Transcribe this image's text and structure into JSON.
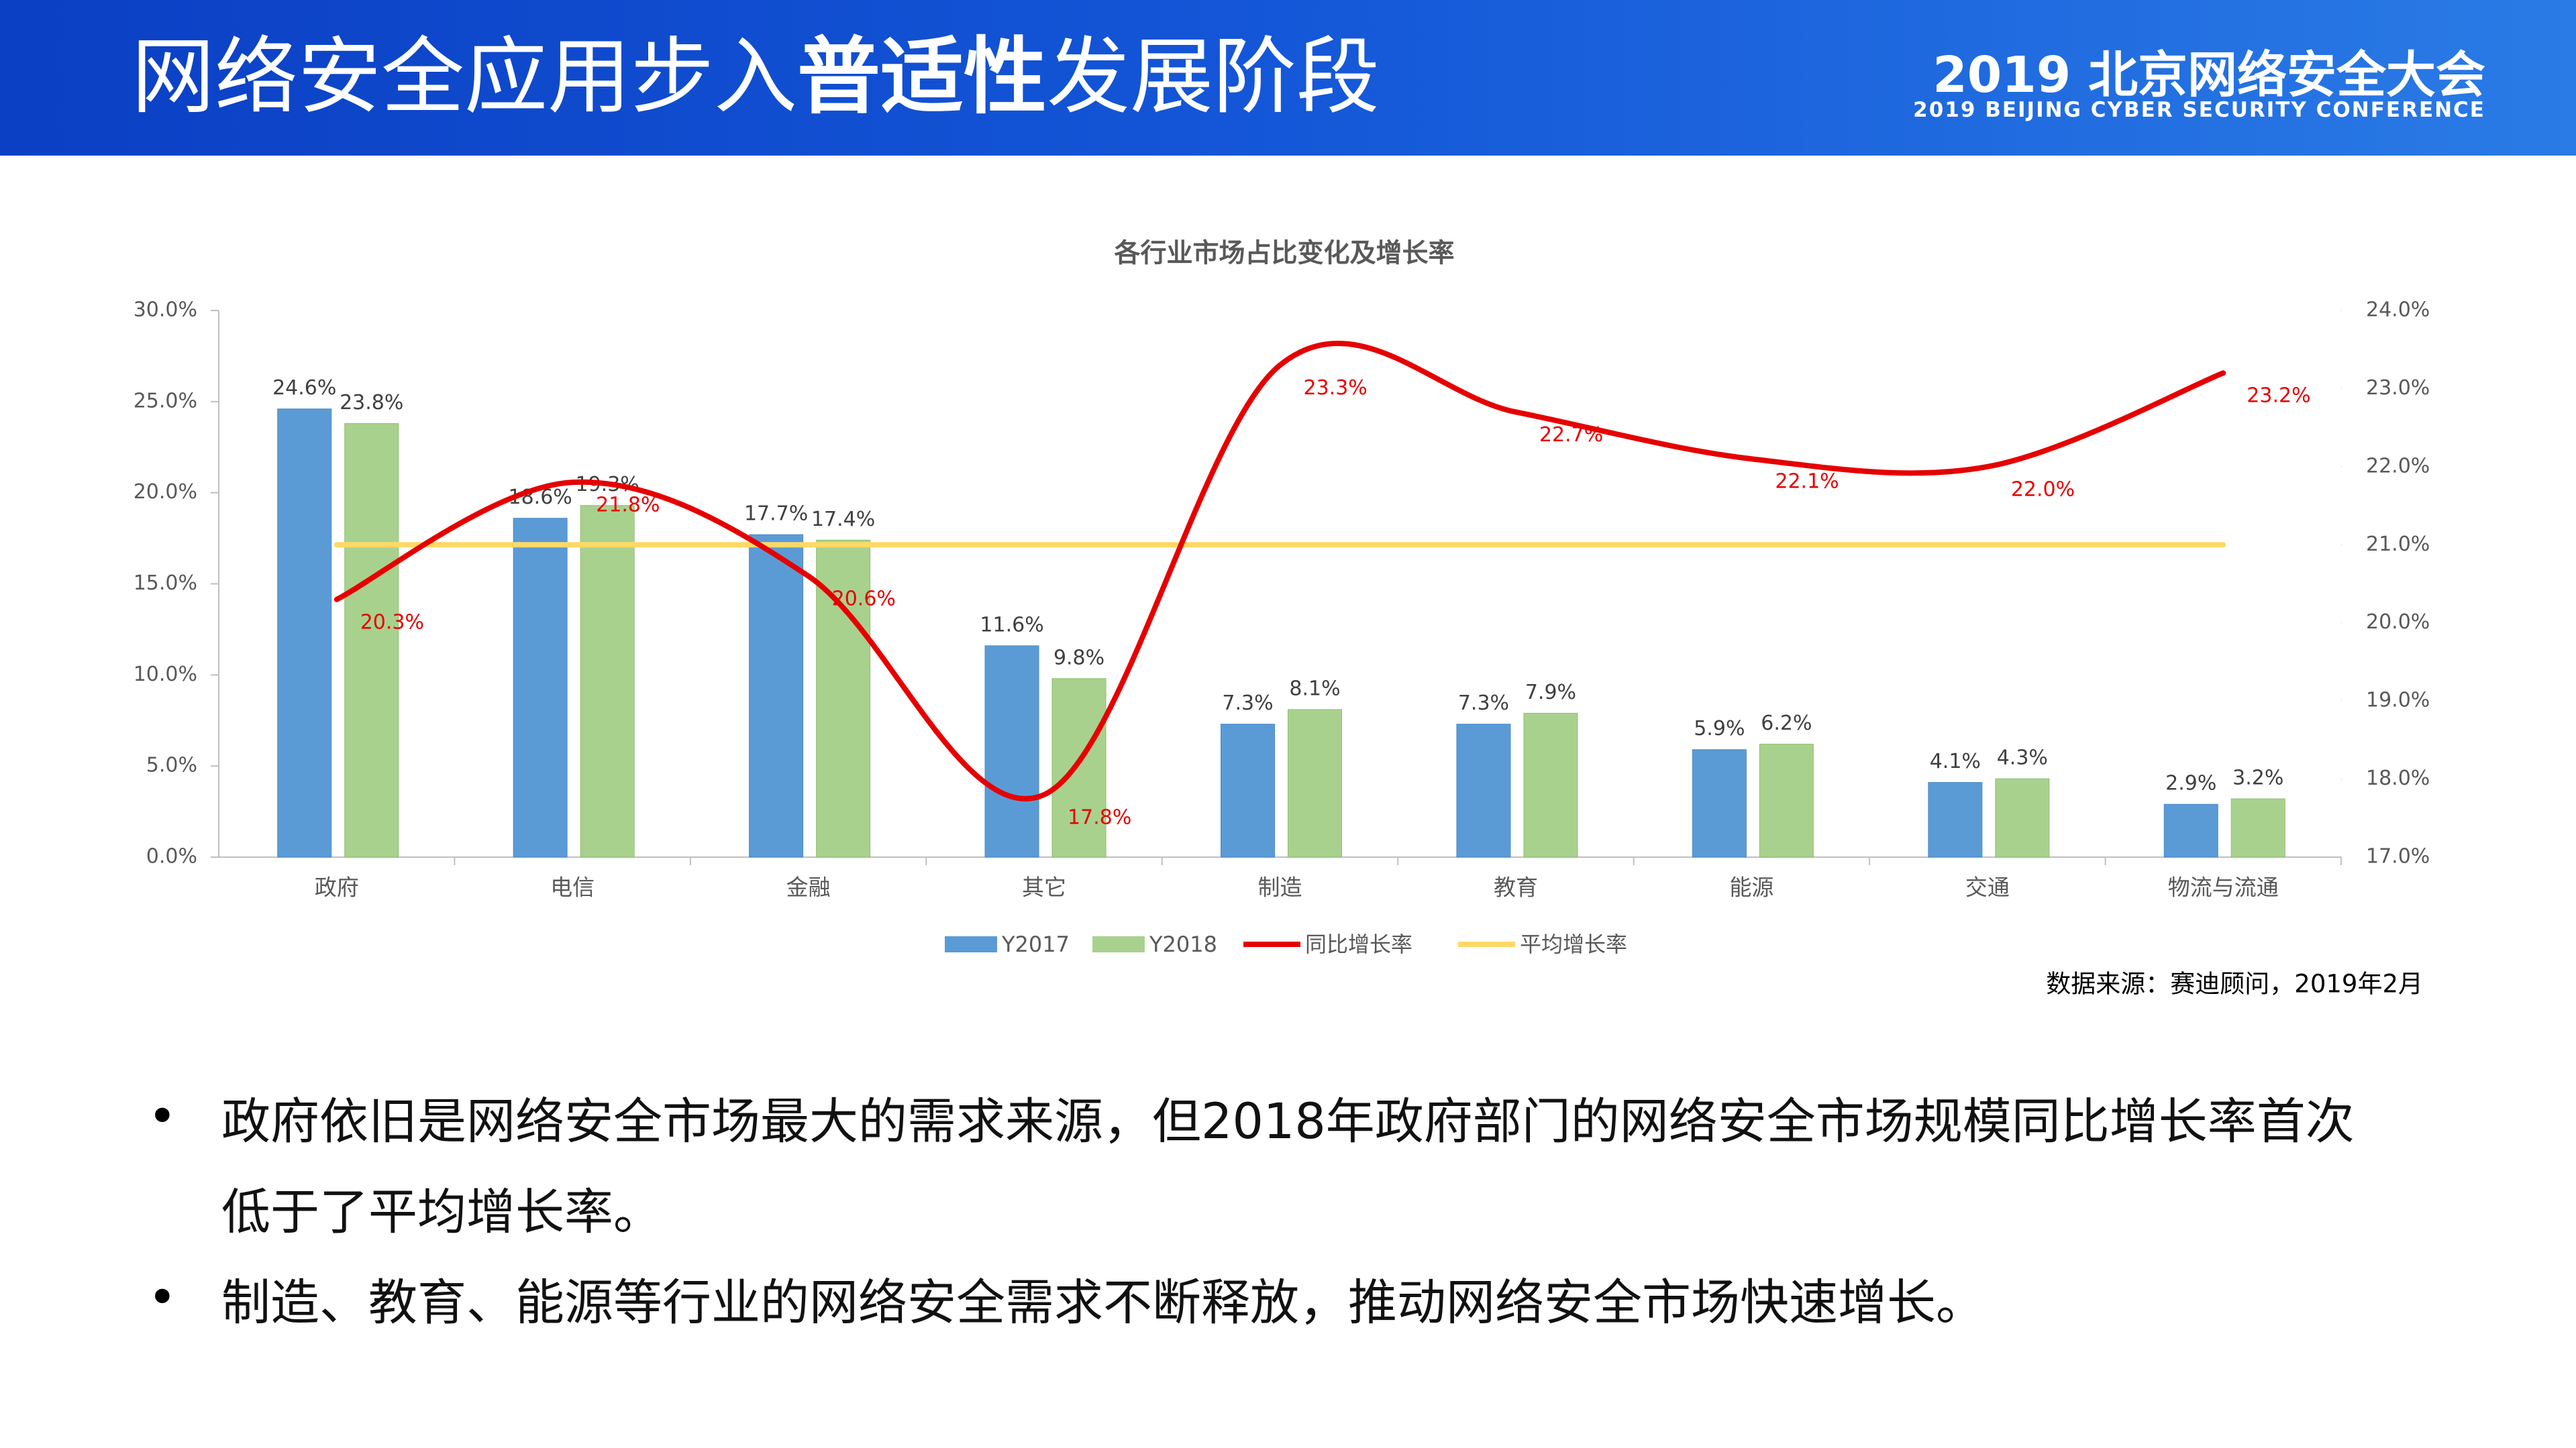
{
  "header": {
    "title_parts": [
      "网络安全应用步入",
      "普适性",
      "发展阶段"
    ],
    "brand": "2019 北京网络安全大会",
    "brand_en": "2019 BEIJING CYBER SECURITY CONFERENCE"
  },
  "chart_data": {
    "type": "combo",
    "title": "各行业市场占比变化及增长率",
    "categories": [
      "政府",
      "电信",
      "金融",
      "其它",
      "制造",
      "教育",
      "能源",
      "交通",
      "物流与流通"
    ],
    "series": [
      {
        "name": "Y2017",
        "type": "bar",
        "color": "#5b9bd5",
        "values": [
          24.6,
          18.6,
          17.7,
          11.6,
          7.3,
          7.3,
          5.9,
          4.1,
          2.9
        ],
        "value_labels": [
          "24.6%",
          "18.6%",
          "17.7%",
          "11.6%",
          "7.3%",
          "7.3%",
          "5.9%",
          "4.1%",
          "2.9%"
        ]
      },
      {
        "name": "Y2018",
        "type": "bar",
        "color": "#a9d18e",
        "values": [
          23.8,
          19.3,
          17.4,
          9.8,
          8.1,
          7.9,
          6.2,
          4.3,
          3.2
        ],
        "value_labels": [
          "23.8%",
          "19.3%",
          "17.4%",
          "9.8%",
          "8.1%",
          "7.9%",
          "6.2%",
          "4.3%",
          "3.2%"
        ]
      },
      {
        "name": "同比增长率",
        "type": "line",
        "axis": "y2",
        "color": "#e60000",
        "values": [
          20.3,
          21.8,
          20.6,
          17.8,
          23.3,
          22.7,
          22.1,
          22.0,
          23.2
        ],
        "value_labels": [
          "20.3%",
          "21.8%",
          "20.6%",
          "17.8%",
          "23.3%",
          "22.7%",
          "22.1%",
          "22.0%",
          "23.2%"
        ]
      },
      {
        "name": "平均增长率",
        "type": "line",
        "axis": "y2",
        "color": "#ffd966",
        "values": [
          21.0,
          21.0,
          21.0,
          21.0,
          21.0,
          21.0,
          21.0,
          21.0,
          21.0
        ]
      }
    ],
    "ylim": [
      0,
      30
    ],
    "yticks": [
      {
        "value": 0,
        "label": "0.0%"
      },
      {
        "value": 5,
        "label": "5.0%"
      },
      {
        "value": 10,
        "label": "10.0%"
      },
      {
        "value": 15,
        "label": "15.0%"
      },
      {
        "value": 20,
        "label": "20.0%"
      },
      {
        "value": 25,
        "label": "25.0%"
      },
      {
        "value": 30,
        "label": "30.0%"
      }
    ],
    "y2lim": [
      17,
      24
    ],
    "y2ticks": [
      {
        "value": 17,
        "label": "17.0%"
      },
      {
        "value": 18,
        "label": "18.0%"
      },
      {
        "value": 19,
        "label": "19.0%"
      },
      {
        "value": 20,
        "label": "20.0%"
      },
      {
        "value": 21,
        "label": "21.0%"
      },
      {
        "value": 22,
        "label": "22.0%"
      },
      {
        "value": 23,
        "label": "23.0%"
      },
      {
        "value": 24,
        "label": "24.0%"
      }
    ],
    "grid": false,
    "legend": "bottom",
    "smooth": true
  },
  "source": "数据来源：赛迪顾问，2019年2月",
  "bullets": [
    "政府依旧是网络安全市场最大的需求来源，但2018年政府部门的网络安全市场规模同比增长率首次低于了平均增长率。",
    "制造、教育、能源等行业的网络安全需求不断释放，推动网络安全市场快速增长。"
  ]
}
